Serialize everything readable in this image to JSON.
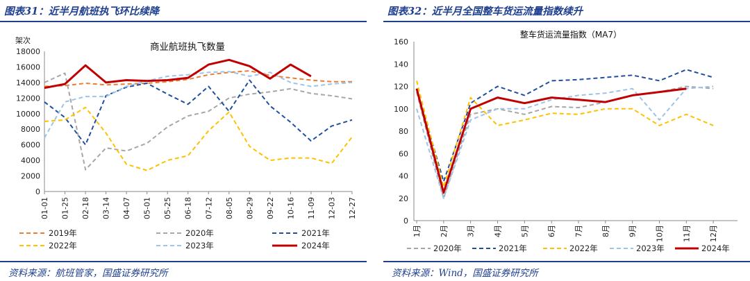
{
  "panel_left": {
    "title": "图表31：近半月航班执飞环比续降",
    "source": "资料来源：航班管家，国盛证券研究所"
  },
  "panel_right": {
    "title": "图表32：近半月全国整车货运流量指数续升",
    "source": "资料来源：Wind，国盛证券研究所"
  },
  "chart_data": [
    {
      "type": "line",
      "title": "商业航班执飞数量",
      "ylabel": "架次",
      "xlabel": "",
      "ylim": [
        0,
        18000
      ],
      "yticks": [
        0,
        2000,
        4000,
        6000,
        8000,
        10000,
        12000,
        14000,
        16000,
        18000
      ],
      "categories": [
        "01-01",
        "01-25",
        "02-18",
        "03-14",
        "04-07",
        "05-01",
        "05-25",
        "06-18",
        "07-12",
        "08-05",
        "08-29",
        "09-22",
        "10-16",
        "11-09",
        "12-03",
        "12-27"
      ],
      "grid": false,
      "legend": "bottom",
      "series": [
        {
          "name": "2019年",
          "color": "#ed7d31",
          "dash": "dash",
          "values": [
            13500,
            13600,
            13900,
            13700,
            13800,
            13900,
            14100,
            14400,
            15000,
            15300,
            15500,
            14900,
            14600,
            14300,
            14100,
            14100
          ]
        },
        {
          "name": "2020年",
          "color": "#a6a6a6",
          "dash": "dash",
          "values": [
            14000,
            15200,
            2800,
            5600,
            5200,
            6200,
            8300,
            9700,
            10300,
            12000,
            12500,
            12800,
            13200,
            12600,
            12300,
            11900
          ]
        },
        {
          "name": "2021年",
          "color": "#1f4e9f",
          "dash": "dash",
          "values": [
            11500,
            9500,
            6000,
            12300,
            13400,
            13900,
            12500,
            11200,
            13500,
            10300,
            14300,
            11000,
            8900,
            6500,
            8400,
            9200
          ]
        },
        {
          "name": "2022年",
          "color": "#ffc000",
          "dash": "dash",
          "values": [
            9000,
            9200,
            10800,
            7500,
            3500,
            2700,
            4000,
            4600,
            7800,
            10200,
            5800,
            4000,
            4300,
            4300,
            3600,
            7000
          ]
        },
        {
          "name": "2023年",
          "color": "#9dc3e6",
          "dash": "dash",
          "values": [
            6900,
            11500,
            12200,
            12200,
            13500,
            14200,
            14800,
            15000,
            15300,
            15400,
            14800,
            15300,
            14000,
            13500,
            13800,
            14000
          ]
        },
        {
          "name": "2024年",
          "color": "#c00000",
          "dash": "solid",
          "values": [
            13300,
            13800,
            16200,
            14000,
            14300,
            14200,
            14300,
            14600,
            16300,
            16900,
            16100,
            14500,
            16300,
            14800,
            null,
            null
          ]
        }
      ]
    },
    {
      "type": "line",
      "title": "整车货运流量指数（MA7）",
      "xlabel": "",
      "ylabel": "",
      "ylim": [
        0,
        160
      ],
      "yticks": [
        0,
        20,
        40,
        60,
        80,
        100,
        120,
        140,
        160
      ],
      "categories": [
        "1月",
        "2月",
        "3月",
        "4月",
        "5月",
        "6月",
        "7月",
        "8月",
        "9月",
        "10月",
        "11月",
        "12月"
      ],
      "grid": false,
      "legend": "bottom",
      "series": [
        {
          "name": "2020年",
          "color": "#a6a6a6",
          "dash": "dash",
          "values": [
            115,
            20,
            95,
            100,
            95,
            102,
            101,
            106,
            112,
            115,
            120,
            118
          ]
        },
        {
          "name": "2021年",
          "color": "#1f4e9f",
          "dash": "dash",
          "values": [
            118,
            35,
            105,
            120,
            112,
            125,
            126,
            128,
            130,
            125,
            135,
            128
          ]
        },
        {
          "name": "2022年",
          "color": "#ffc000",
          "dash": "dash",
          "values": [
            125,
            30,
            110,
            85,
            90,
            96,
            95,
            100,
            100,
            85,
            95,
            85
          ]
        },
        {
          "name": "2023年",
          "color": "#9dc3e6",
          "dash": "dash",
          "values": [
            100,
            20,
            90,
            100,
            100,
            108,
            112,
            114,
            118,
            90,
            118,
            120
          ]
        },
        {
          "name": "2024年",
          "color": "#c00000",
          "dash": "solid",
          "values": [
            118,
            25,
            100,
            110,
            105,
            110,
            108,
            106,
            112,
            115,
            118,
            null
          ]
        }
      ]
    }
  ]
}
